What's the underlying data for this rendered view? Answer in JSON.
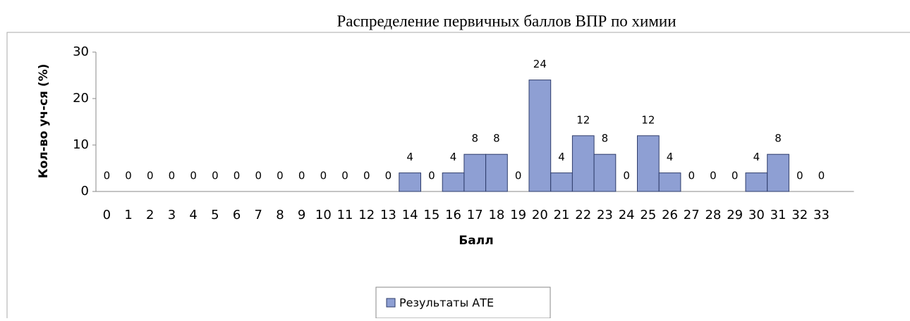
{
  "chart_data": {
    "type": "bar",
    "title": "Распределение первичных баллов ВПР по химии",
    "y_label": "Кол-во уч-ся (%)",
    "x_label": "Балл",
    "categories": [
      "0",
      "1",
      "2",
      "3",
      "4",
      "5",
      "6",
      "7",
      "8",
      "9",
      "10",
      "11",
      "12",
      "13",
      "14",
      "15",
      "16",
      "17",
      "18",
      "19",
      "20",
      "21",
      "22",
      "23",
      "24",
      "25",
      "26",
      "27",
      "28",
      "29",
      "30",
      "31",
      "32",
      "33",
      null
    ],
    "series": [
      {
        "name": "Результаты АТЕ",
        "color": "#8e9fd3",
        "values": [
          0,
          0,
          0,
          0,
          0,
          0,
          0,
          0,
          0,
          0,
          0,
          0,
          0,
          0,
          4,
          0,
          4,
          8,
          8,
          0,
          24,
          4,
          12,
          8,
          0,
          12,
          4,
          0,
          0,
          0,
          4,
          8,
          0,
          0,
          null
        ]
      }
    ],
    "ylim": [
      0,
      30
    ],
    "yticks": [
      0,
      10,
      20,
      30
    ],
    "grid": false,
    "legend": "bottom"
  }
}
